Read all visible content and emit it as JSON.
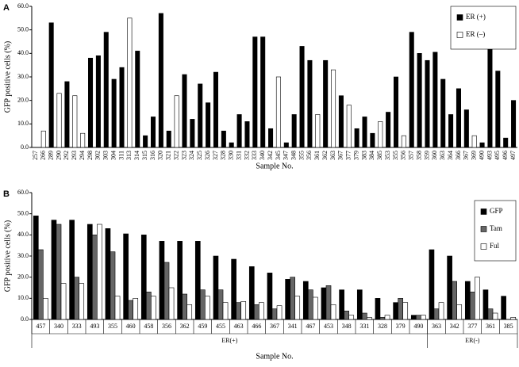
{
  "chart_data": [
    {
      "type": "bar",
      "panel_label": "A",
      "y_label": "GFP positive cells (%)",
      "x_label": "Sample No.",
      "categories": [
        "257",
        "266",
        "289",
        "290",
        "292",
        "293",
        "294",
        "298",
        "302",
        "303",
        "304",
        "311",
        "313",
        "314",
        "315",
        "316",
        "320",
        "321",
        "322",
        "323",
        "324",
        "325",
        "326",
        "327",
        "328",
        "330",
        "331",
        "332",
        "333",
        "340",
        "342",
        "345",
        "347",
        "348",
        "355",
        "356",
        "361",
        "362",
        "363",
        "367",
        "377",
        "379",
        "383",
        "384",
        "385",
        "353",
        "355",
        "356",
        "357",
        "358",
        "359",
        "360",
        "363",
        "364",
        "366",
        "367",
        "369",
        "490",
        "493",
        "495",
        "496",
        "497"
      ],
      "series": [
        {
          "name": "ER (+)",
          "color": "#000000",
          "values": [
            null,
            null,
            53,
            null,
            28,
            null,
            null,
            38,
            39,
            49,
            29,
            34,
            null,
            41,
            5,
            13,
            57,
            7,
            null,
            31,
            12,
            27,
            19,
            32,
            7,
            2,
            14,
            11,
            47,
            47,
            8,
            null,
            2,
            14,
            43,
            37,
            null,
            37,
            null,
            22,
            null,
            8,
            13,
            6,
            null,
            15,
            30,
            null,
            49,
            40,
            37,
            40.5,
            29,
            14,
            25,
            16,
            null,
            2,
            45,
            32.5,
            4,
            20
          ]
        },
        {
          "name": "ER (–)",
          "color": "#ffffff",
          "values": [
            null,
            7,
            null,
            23,
            null,
            22,
            6,
            null,
            null,
            null,
            null,
            null,
            55,
            null,
            null,
            null,
            null,
            null,
            22,
            null,
            null,
            null,
            null,
            null,
            null,
            null,
            null,
            null,
            null,
            null,
            null,
            30,
            null,
            null,
            null,
            null,
            14,
            null,
            33,
            null,
            18,
            null,
            null,
            null,
            11,
            null,
            null,
            5,
            null,
            null,
            null,
            null,
            null,
            null,
            null,
            null,
            5,
            null,
            null,
            null,
            null,
            null
          ]
        }
      ],
      "ylim": [
        0,
        60
      ],
      "yticks": [
        {
          "value": 0,
          "label": "0.0"
        },
        {
          "value": 10,
          "label": "10.0"
        },
        {
          "value": 20,
          "label": "20.0"
        },
        {
          "value": 30,
          "label": "30.0"
        },
        {
          "value": 40,
          "label": "40.0"
        },
        {
          "value": 50,
          "label": "50.0"
        },
        {
          "value": 60,
          "label": "60.0"
        }
      ],
      "legend": "upper right"
    },
    {
      "type": "grouped-bar",
      "panel_label": "B",
      "y_label": "GFP positive cells (%)",
      "x_label": "Sample No.",
      "groups": [
        {
          "name": "ER(+)",
          "categories": [
            "457",
            "340",
            "333",
            "493",
            "355",
            "460",
            "458",
            "356",
            "362",
            "459",
            "455",
            "463",
            "466",
            "367",
            "341",
            "467",
            "453",
            "348",
            "331",
            "328",
            "379",
            "490"
          ]
        },
        {
          "name": "ER(-)",
          "categories": [
            "363",
            "342",
            "377",
            "361",
            "385"
          ]
        }
      ],
      "series": [
        {
          "name": "GFP",
          "color": "#000000",
          "values": [
            49,
            47,
            47,
            45,
            43,
            40.5,
            40,
            37,
            37,
            37,
            30,
            28.5,
            25,
            22,
            19,
            18,
            15,
            14,
            14,
            10,
            8,
            2,
            33,
            30,
            18,
            14,
            11
          ]
        },
        {
          "name": "Tam",
          "color": "#666666",
          "values": [
            33,
            45,
            20,
            40,
            32,
            9,
            13,
            27,
            12,
            14,
            14,
            8,
            7,
            5,
            20,
            14,
            16,
            4,
            3,
            1,
            10,
            2,
            5,
            18,
            13,
            5,
            0
          ]
        },
        {
          "name": "Ful",
          "color": "#ffffff",
          "values": [
            10,
            17,
            17,
            45,
            11,
            10,
            11,
            15,
            7,
            11,
            8,
            8.5,
            8,
            6.5,
            11,
            10.5,
            7,
            2,
            1,
            2,
            8,
            2,
            8,
            7,
            20,
            3,
            1
          ]
        }
      ],
      "ylim": [
        0,
        60
      ],
      "yticks": [
        {
          "value": 0,
          "label": "0.0"
        },
        {
          "value": 10,
          "label": "10.0"
        },
        {
          "value": 20,
          "label": "20.0"
        },
        {
          "value": 30,
          "label": "30.0"
        },
        {
          "value": 40,
          "label": "40.0"
        },
        {
          "value": 50,
          "label": "50.0"
        },
        {
          "value": 60,
          "label": "60.0"
        }
      ],
      "legend": "upper right"
    }
  ]
}
